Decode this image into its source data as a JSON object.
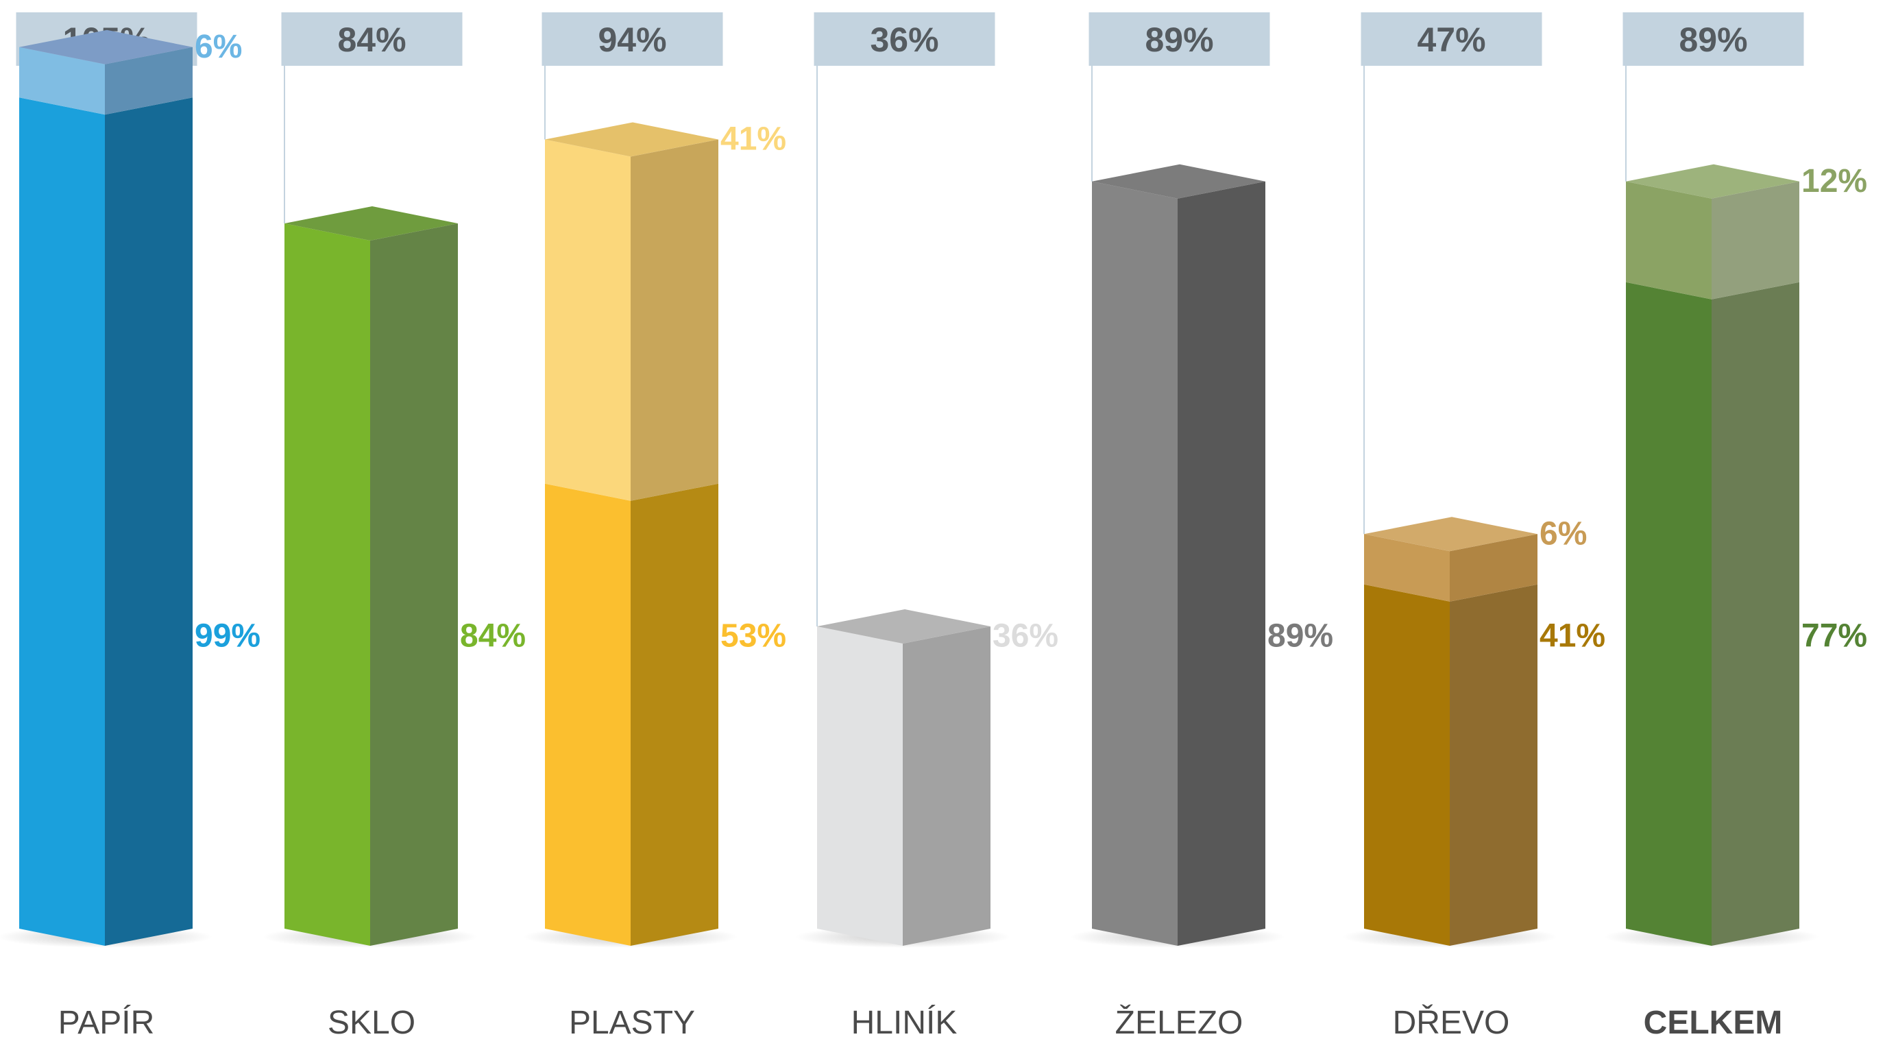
{
  "chart_data": {
    "type": "bar",
    "stacked": true,
    "three_d": true,
    "grid": false,
    "legend": "none",
    "ylim": [
      0,
      110
    ],
    "categories": [
      "PAPÍR",
      "SKLO",
      "PLASTY",
      "HLINÍK",
      "ŽELEZO",
      "DŘEVO",
      "CELKEM"
    ],
    "totals": [
      "105%",
      "84%",
      "94%",
      "36%",
      "89%",
      "47%",
      "89%"
    ],
    "columns": [
      {
        "category": "PAPÍR",
        "total_label": "105%",
        "category_bold": false,
        "segments": [
          {
            "value": 99,
            "label": "99%",
            "front": "#1ba0dc",
            "side": "#156a96",
            "label_color": "#1ba0dc"
          },
          {
            "value": 6,
            "label": "6%",
            "front": "#80bde3",
            "side": "#5e8fb4",
            "top": "#7d9cc6",
            "label_color": "#6cb6e4"
          }
        ]
      },
      {
        "category": "SKLO",
        "total_label": "84%",
        "category_bold": false,
        "segments": [
          {
            "value": 84,
            "label": "84%",
            "front": "#79b52c",
            "side": "#648446",
            "top": "#6f9c3e",
            "label_color": "#79b52c"
          }
        ]
      },
      {
        "category": "PLASTY",
        "total_label": "94%",
        "category_bold": false,
        "segments": [
          {
            "value": 53,
            "label": "53%",
            "front": "#fbbf2f",
            "side": "#b58a14",
            "label_color": "#fbbf2f"
          },
          {
            "value": 41,
            "label": "41%",
            "front": "#fbd77b",
            "side": "#c8a65a",
            "top": "#e5c16a",
            "label_color": "#fbd77b"
          }
        ]
      },
      {
        "category": "HLINÍK",
        "total_label": "36%",
        "category_bold": false,
        "segments": [
          {
            "value": 36,
            "label": "36%",
            "front": "#e1e2e3",
            "side": "#a2a2a2",
            "top": "#b5b5b5",
            "label_color": "#dcdcdc"
          }
        ]
      },
      {
        "category": "ŽELEZO",
        "total_label": "89%",
        "category_bold": false,
        "segments": [
          {
            "value": 89,
            "label": "89%",
            "front": "#858585",
            "side": "#585858",
            "top": "#7c7c7c",
            "label_color": "#7a7a7a"
          }
        ]
      },
      {
        "category": "DŘEVO",
        "total_label": "47%",
        "category_bold": false,
        "segments": [
          {
            "value": 41,
            "label": "41%",
            "front": "#a87807",
            "side": "#8f6c2f",
            "label_color": "#a87807"
          },
          {
            "value": 6,
            "label": "6%",
            "front": "#c89b55",
            "side": "#b08543",
            "top": "#d2aa6a",
            "label_color": "#c89b55"
          }
        ]
      },
      {
        "category": "CELKEM",
        "total_label": "89%",
        "category_bold": true,
        "segments": [
          {
            "value": 77,
            "label": "77%",
            "front": "#548334",
            "side": "#6b7d54",
            "label_color": "#548334"
          },
          {
            "value": 12,
            "label": "12%",
            "front": "#8ba364",
            "side": "#93a07d",
            "top": "#9db37c",
            "label_color": "#8ba364"
          }
        ]
      }
    ]
  },
  "colors": {
    "total_box": "#c3d3df",
    "total_text": "#555b60",
    "connector_line": "#c3d3df",
    "category_text": "#4a4a4a"
  }
}
